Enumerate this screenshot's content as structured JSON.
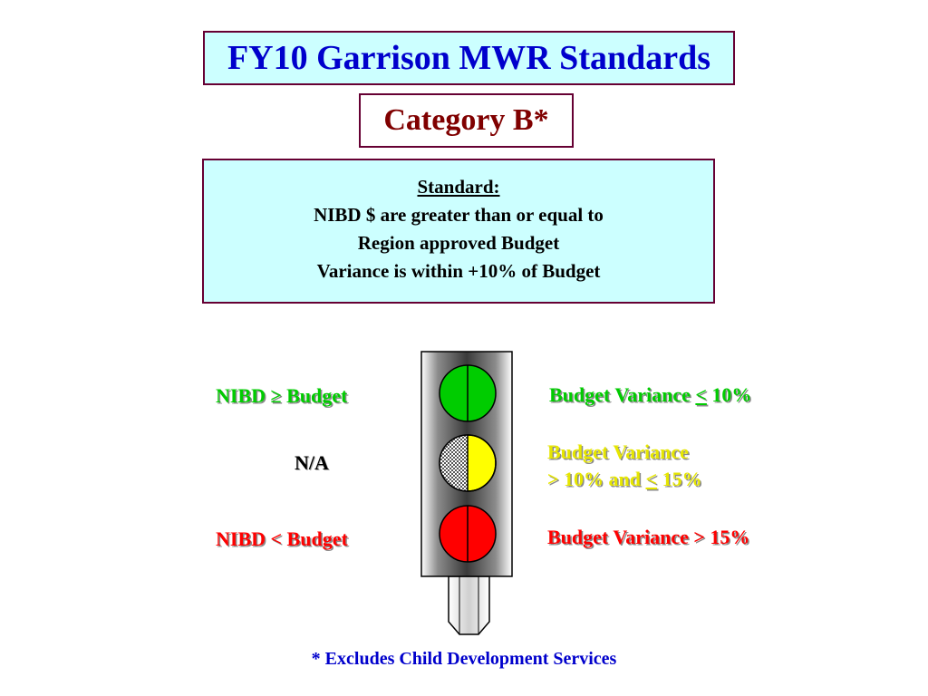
{
  "title": "FY10 Garrison MWR Standards",
  "category": "Category B*",
  "standard": {
    "heading": "Standard:",
    "lines": [
      "NIBD $ are greater than or equal to",
      "Region approved Budget",
      "Variance is within +10% of Budget"
    ]
  },
  "left_labels": {
    "green": "NIBD ≥ Budget",
    "middle": "N/A",
    "red": "NIBD < Budget"
  },
  "right_labels": {
    "green_prefix": "Budget Variance ",
    "green_symbol": "<",
    "green_suffix": " 10%",
    "yellow_line1": "Budget Variance",
    "yellow_line2_prefix": "> 10% and ",
    "yellow_line2_symbol": "<",
    "yellow_line2_suffix": " 15%",
    "red": "Budget Variance > 15%"
  },
  "footnote": "* Excludes Child Development Services",
  "colors": {
    "title_text": "#0000cc",
    "category_text": "#800000",
    "green": "#00cc00",
    "yellow": "#ffff00",
    "red": "#ff0000",
    "label_green": "#00cc00",
    "label_yellow": "#e6e600",
    "label_red": "#ff0000",
    "footnote_text": "#0000cc"
  }
}
